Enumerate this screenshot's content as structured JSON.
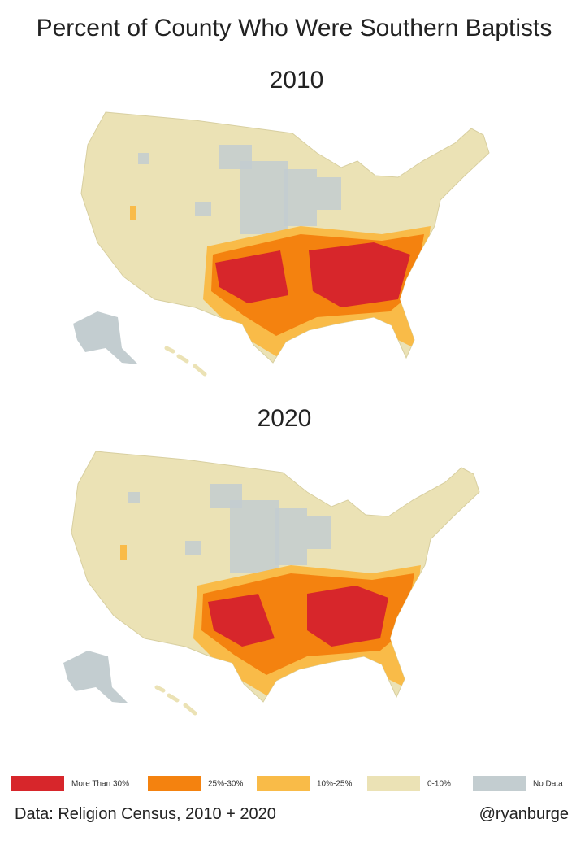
{
  "title": "Percent of County Who Were Southern Baptists",
  "maps": [
    {
      "year": "2010"
    },
    {
      "year": "2020"
    }
  ],
  "legend": [
    {
      "label": "More Than 30%",
      "color": "#d7262b"
    },
    {
      "label": "25%-30%",
      "color": "#f4820f"
    },
    {
      "label": "10%-25%",
      "color": "#f9bb48"
    },
    {
      "label": "0-10%",
      "color": "#ebe2b5"
    },
    {
      "label": "No Data",
      "color": "#c3cdd0"
    }
  ],
  "footer": {
    "source": "Data: Religion Census, 2010 + 2020",
    "credit": "@ryanburge"
  }
}
